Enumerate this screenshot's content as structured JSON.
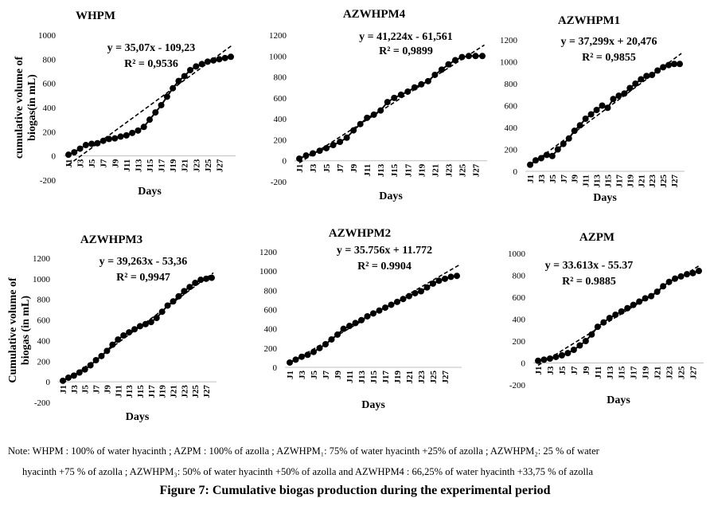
{
  "chart_data": [
    {
      "type": "scatter",
      "title": "WHPM",
      "equation": "y = 35,07x - 109,23",
      "r2": "R² = 0,9536",
      "ylabel": [
        "cumulative volume of",
        "biogas(in mL)"
      ],
      "xlabel": "Days",
      "ylim": [
        -200,
        1000
      ],
      "yticks": [
        "-200",
        "0",
        "200",
        "400",
        "600",
        "800",
        "1000"
      ],
      "xticks": [
        "J1",
        "J3",
        "J5",
        "J7",
        "J9",
        "J11",
        "J13",
        "J15",
        "J17",
        "J19",
        "J21",
        "J23",
        "J25",
        "J27"
      ],
      "trend": {
        "slope": 35.07,
        "intercept": -109.23
      },
      "series": [
        {
          "values": [
            10,
            30,
            60,
            90,
            100,
            105,
            125,
            140,
            145,
            160,
            170,
            190,
            210,
            240,
            300,
            360,
            420,
            490,
            560,
            620,
            660,
            710,
            740,
            760,
            780,
            790,
            800,
            810,
            820
          ]
        }
      ]
    },
    {
      "type": "scatter",
      "title": "AZWHPM4",
      "equation": "y = 41,224x - 61,561",
      "r2": "R² = 0,9899",
      "ylabel": [],
      "xlabel": "Days",
      "ylim": [
        -200,
        1200
      ],
      "yticks": [
        "-200",
        "0",
        "200",
        "400",
        "600",
        "800",
        "1000",
        "1200"
      ],
      "xticks": [
        "J1",
        "J3",
        "J5",
        "J7",
        "J9",
        "J11",
        "J13",
        "J15",
        "J17",
        "J19",
        "J21",
        "J23",
        "J25",
        "J27"
      ],
      "trend": {
        "slope": 41.224,
        "intercept": -61.561
      },
      "series": [
        {
          "values": [
            20,
            50,
            70,
            95,
            120,
            150,
            180,
            220,
            290,
            350,
            410,
            440,
            480,
            560,
            600,
            630,
            660,
            700,
            730,
            760,
            820,
            870,
            920,
            960,
            990,
            1000,
            1000,
            1000
          ]
        }
      ]
    },
    {
      "type": "scatter",
      "title": "AZWHPM1",
      "equation": "y = 37,299x + 20,476",
      "r2": "R² = 0,9855",
      "ylabel": [],
      "xlabel": "Days",
      "ylim": [
        0,
        1200
      ],
      "yticks": [
        "0",
        "200",
        "400",
        "600",
        "800",
        "1000",
        "1200"
      ],
      "xticks": [
        "J1",
        "J3",
        "J5",
        "J7",
        "J9",
        "J11",
        "J13",
        "J15",
        "J17",
        "J19",
        "J21",
        "J23",
        "J25",
        "J27"
      ],
      "trend": {
        "slope": 37.299,
        "intercept": 20.476
      },
      "series": [
        {
          "values": [
            60,
            100,
            120,
            150,
            140,
            200,
            250,
            300,
            370,
            420,
            480,
            520,
            560,
            600,
            580,
            660,
            690,
            710,
            760,
            800,
            840,
            870,
            880,
            920,
            950,
            970,
            980,
            980
          ]
        }
      ]
    },
    {
      "type": "scatter",
      "title": "AZWHPM3",
      "equation": "y = 39,263x - 53,36",
      "r2": "R² = 0,9947",
      "ylabel": [
        "Cumulative volume of",
        "biogas (in mL)"
      ],
      "xlabel": "Days",
      "ylim": [
        -200,
        1200
      ],
      "yticks": [
        "-200",
        "0",
        "200",
        "400",
        "600",
        "800",
        "1000",
        "1200"
      ],
      "xticks": [
        "J1",
        "J3",
        "J5",
        "J7",
        "J9",
        "J11",
        "J13",
        "J15",
        "J17",
        "J19",
        "J21",
        "J23",
        "J25",
        "J27"
      ],
      "trend": {
        "slope": 39.263,
        "intercept": -53.36
      },
      "series": [
        {
          "values": [
            10,
            40,
            60,
            90,
            120,
            160,
            210,
            250,
            300,
            360,
            410,
            450,
            480,
            510,
            540,
            560,
            580,
            620,
            680,
            740,
            780,
            830,
            880,
            920,
            960,
            990,
            1000,
            1010
          ]
        }
      ]
    },
    {
      "type": "scatter",
      "title": "AZWHPM2",
      "equation": "y = 35.756x + 11.772",
      "r2": "R² = 0.9904",
      "ylabel": [],
      "xlabel": "Days",
      "ylim": [
        0,
        1200
      ],
      "yticks": [
        "0",
        "200",
        "400",
        "600",
        "800",
        "1000",
        "1200"
      ],
      "xticks": [
        "J1",
        "J3",
        "J5",
        "J7",
        "J9",
        "J11",
        "J13",
        "J15",
        "J17",
        "J19",
        "J21",
        "J23",
        "J25",
        "J27"
      ],
      "trend": {
        "slope": 35.756,
        "intercept": 11.772
      },
      "series": [
        {
          "values": [
            50,
            80,
            110,
            130,
            160,
            200,
            240,
            290,
            340,
            400,
            430,
            460,
            490,
            530,
            560,
            590,
            620,
            650,
            680,
            710,
            740,
            770,
            790,
            830,
            870,
            900,
            920,
            940,
            950
          ]
        }
      ]
    },
    {
      "type": "scatter",
      "title": "AZPM",
      "equation": "y = 33.613x - 55.37",
      "r2": "R² = 0.9885",
      "ylabel": [],
      "xlabel": "Days",
      "ylim": [
        -200,
        1000
      ],
      "yticks": [
        "-200",
        "0",
        "200",
        "400",
        "600",
        "800",
        "1000"
      ],
      "xticks": [
        "J1",
        "J3",
        "J5",
        "J7",
        "J9",
        "J11",
        "J13",
        "J15",
        "J17",
        "J19",
        "J21",
        "J23",
        "J25",
        "J27"
      ],
      "trend": {
        "slope": 33.613,
        "intercept": -55.37
      },
      "series": [
        {
          "values": [
            20,
            30,
            40,
            55,
            70,
            90,
            120,
            160,
            200,
            260,
            330,
            370,
            410,
            440,
            470,
            500,
            530,
            560,
            590,
            610,
            650,
            700,
            740,
            770,
            790,
            810,
            820,
            840
          ]
        }
      ]
    }
  ],
  "note": {
    "line1": "Note: WHPM : 100% of water hyacinth ; AZPM : 100% of azolla ; AZWHPM₁: 75% of water hyacinth +25% of azolla ; AZWHPM₂: 25 % of water",
    "line2": "hyacinth +75 % of azolla ; AZWHPM₃: 50% of water hyacinth +50% of azolla and AZWHPM4 : 66,25% of water hyacinth +33,75 % of azolla"
  },
  "caption": "Figure 7: Cumulative biogas production during the experimental period"
}
